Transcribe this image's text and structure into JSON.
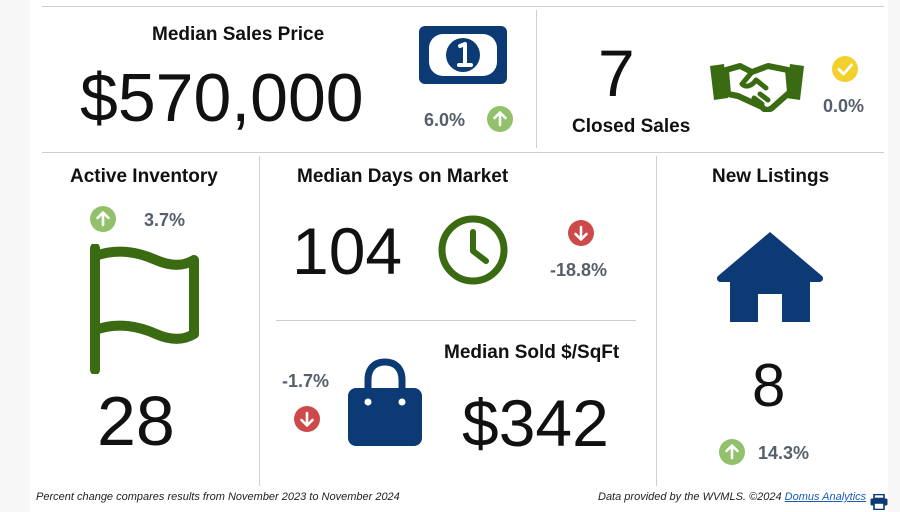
{
  "median_sales_price": {
    "title": "Median Sales Price",
    "value": "$570,000",
    "change": "6.0%",
    "direction": "up",
    "icon": "money-icon"
  },
  "closed_sales": {
    "title": "Closed Sales",
    "value": "7",
    "change": "0.0%",
    "direction": "neutral",
    "icon": "handshake-icon"
  },
  "active_inventory": {
    "title": "Active Inventory",
    "value": "28",
    "change": "3.7%",
    "direction": "up",
    "icon": "flag-icon"
  },
  "median_days_on_market": {
    "title": "Median Days on Market",
    "value": "104",
    "change": "-18.8%",
    "direction": "down",
    "icon": "clock-icon"
  },
  "median_sold_sqft": {
    "title": "Median Sold $/SqFt",
    "value": "$342",
    "change": "-1.7%",
    "direction": "down",
    "icon": "shopping-bag-icon"
  },
  "new_listings": {
    "title": "New Listings",
    "value": "8",
    "change": "14.3%",
    "direction": "up",
    "icon": "house-icon"
  },
  "footer": {
    "note": "Percent change compares results from November 2023 to November 2024",
    "credit": "Data provided by the WVMLS. ©2024 ",
    "link": "Domus Analytics",
    "print_icon": "printer-icon"
  },
  "colors": {
    "navy": "#0b3a74",
    "green": "#3a6b12",
    "up": "#93c06b",
    "down": "#cc4a4a",
    "neutral": "#f2d12e",
    "pct_text": "#555f6b"
  }
}
